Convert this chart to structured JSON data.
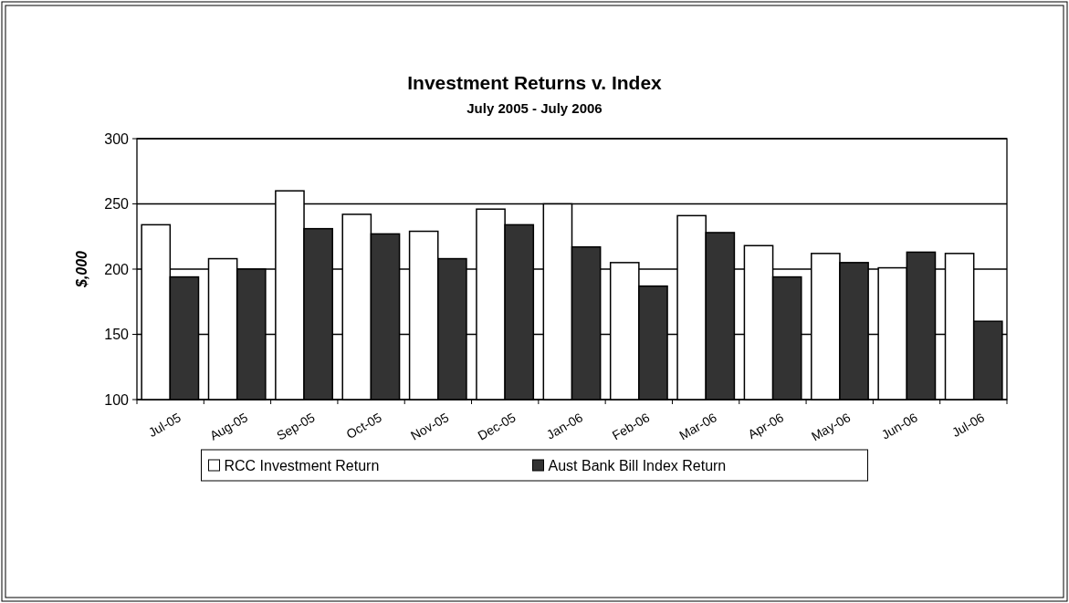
{
  "chart_data": {
    "type": "bar",
    "title": "Investment Returns v. Index",
    "subtitle": "July 2005 - July 2006",
    "ylabel": "$,000",
    "categories": [
      "Jul-05",
      "Aug-05",
      "Sep-05",
      "Oct-05",
      "Nov-05",
      "Dec-05",
      "Jan-06",
      "Feb-06",
      "Mar-06",
      "Apr-06",
      "May-06",
      "Jun-06",
      "Jul-06"
    ],
    "series": [
      {
        "name": "RCC Investment Return",
        "color": "#ffffff",
        "values": [
          234,
          208,
          260,
          242,
          229,
          246,
          250,
          205,
          241,
          218,
          212,
          201,
          212
        ]
      },
      {
        "name": "Aust Bank Bill Index Return",
        "color": "#333333",
        "values": [
          194,
          200,
          231,
          227,
          208,
          234,
          217,
          187,
          228,
          194,
          205,
          213,
          160
        ]
      }
    ],
    "ylim": [
      100,
      300
    ],
    "yticks": [
      100,
      150,
      200,
      250,
      300
    ],
    "grid": "y",
    "legend": "bottom"
  }
}
